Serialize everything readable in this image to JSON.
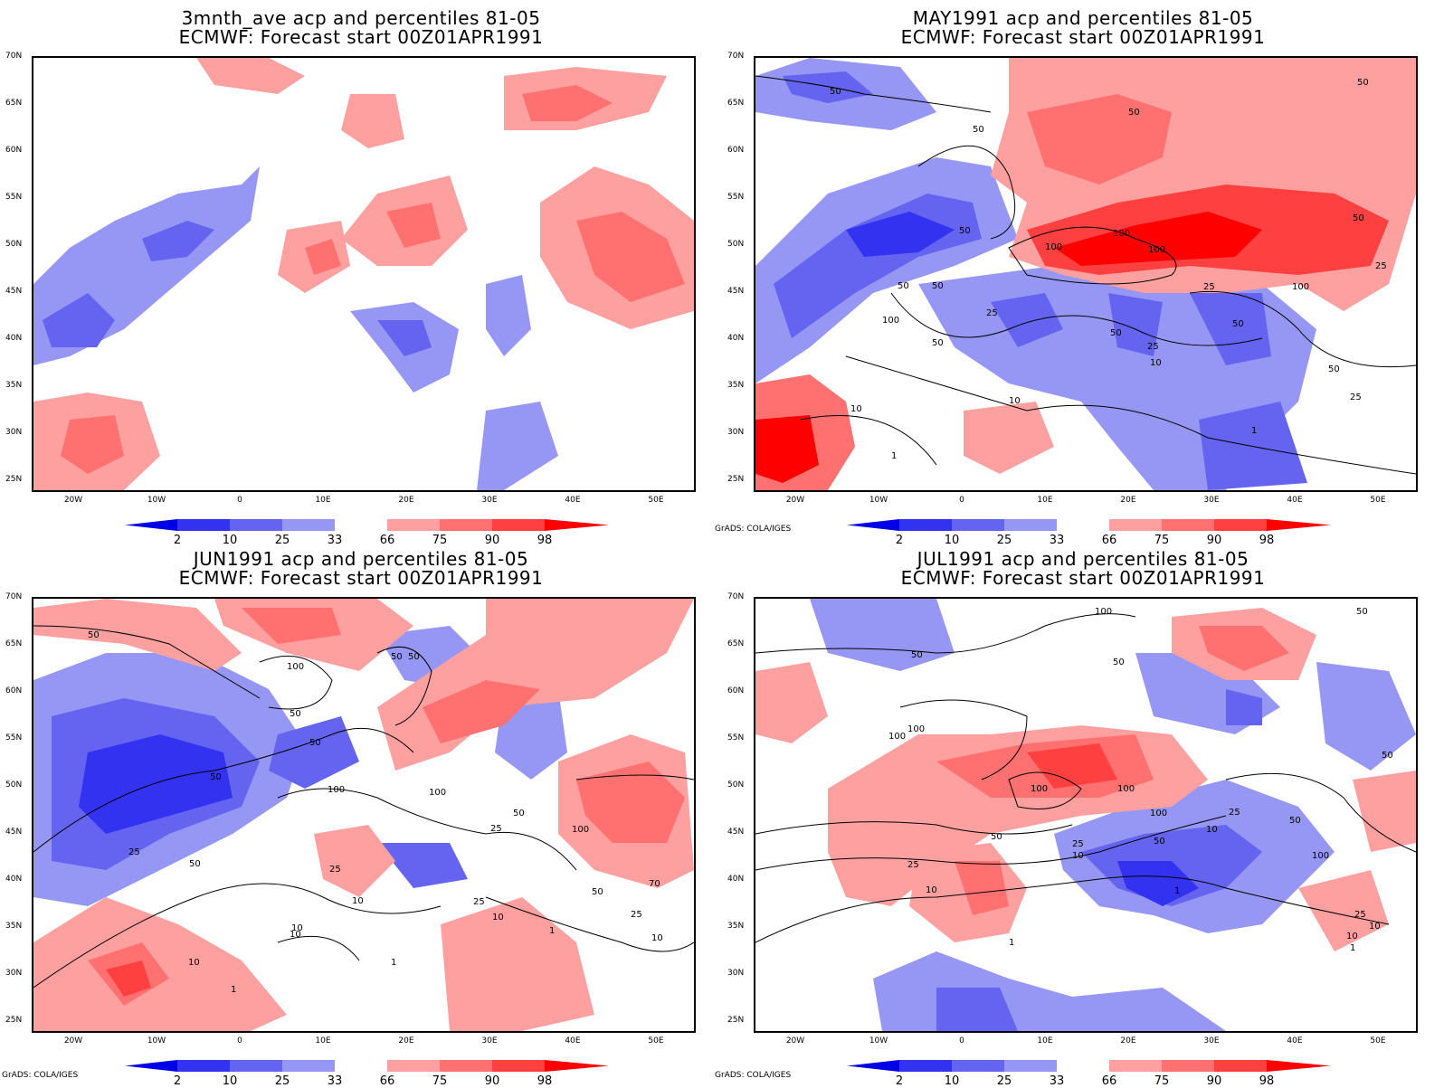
{
  "panels": [
    {
      "title_line1": "3mnth_ave acp and percentiles 81-05",
      "title_line2": "ECMWF: Forecast start 00Z01APR1991",
      "credit": ""
    },
    {
      "title_line1": "MAY1991 acp and percentiles 81-05",
      "title_line2": "ECMWF: Forecast start 00Z01APR1991",
      "credit": "GrADS: COLA/IGES"
    },
    {
      "title_line1": "JUN1991 acp and percentiles 81-05",
      "title_line2": "ECMWF: Forecast start 00Z01APR1991",
      "credit": "GrADS: COLA/IGES"
    },
    {
      "title_line1": "JUL1991 acp and percentiles 81-05",
      "title_line2": "ECMWF: Forecast start 00Z01APR1991",
      "credit": "GrADS: COLA/IGES"
    }
  ],
  "map": {
    "lat_labels": [
      "70N",
      "65N",
      "60N",
      "55N",
      "50N",
      "45N",
      "40N",
      "35N",
      "30N",
      "25N"
    ],
    "lon_labels": [
      "20W",
      "10W",
      "0",
      "10E",
      "20E",
      "30E",
      "40E",
      "50E"
    ],
    "extent": {
      "lon_min": -25,
      "lon_max": 55,
      "lat_min": 25,
      "lat_max": 70
    }
  },
  "colorbar": {
    "labels": [
      "2",
      "10",
      "25",
      "33",
      "66",
      "75",
      "90",
      "98"
    ],
    "colors": [
      "#0000e6",
      "#3232f0",
      "#6464f0",
      "#9696f5",
      "#ffffff",
      "#ffa0a0",
      "#ff7070",
      "#ff4040",
      "#ff0000"
    ]
  },
  "contour_labels": {
    "panel2": [
      "50",
      "50",
      "50",
      "50",
      "100",
      "100",
      "100",
      "50",
      "100",
      "50",
      "25",
      "50",
      "50",
      "25",
      "50",
      "10",
      "25",
      "10",
      "1",
      "100",
      "25",
      "50",
      "50",
      "25",
      "10",
      "1",
      "50"
    ],
    "panel3": [
      "50",
      "50",
      "100",
      "50",
      "50",
      "50",
      "50",
      "100",
      "100",
      "50",
      "25",
      "100",
      "25",
      "50",
      "25",
      "10",
      "10",
      "50",
      "25",
      "10",
      "10",
      "1",
      "1",
      "25",
      "10",
      "1",
      "10",
      "70"
    ],
    "panel4": [
      "100",
      "50",
      "50",
      "50",
      "100",
      "100",
      "100",
      "50",
      "100",
      "100",
      "25",
      "10",
      "25",
      "10",
      "50",
      "10",
      "25",
      "10",
      "1",
      "1",
      "50",
      "100",
      "25",
      "10",
      "1",
      "50"
    ]
  }
}
